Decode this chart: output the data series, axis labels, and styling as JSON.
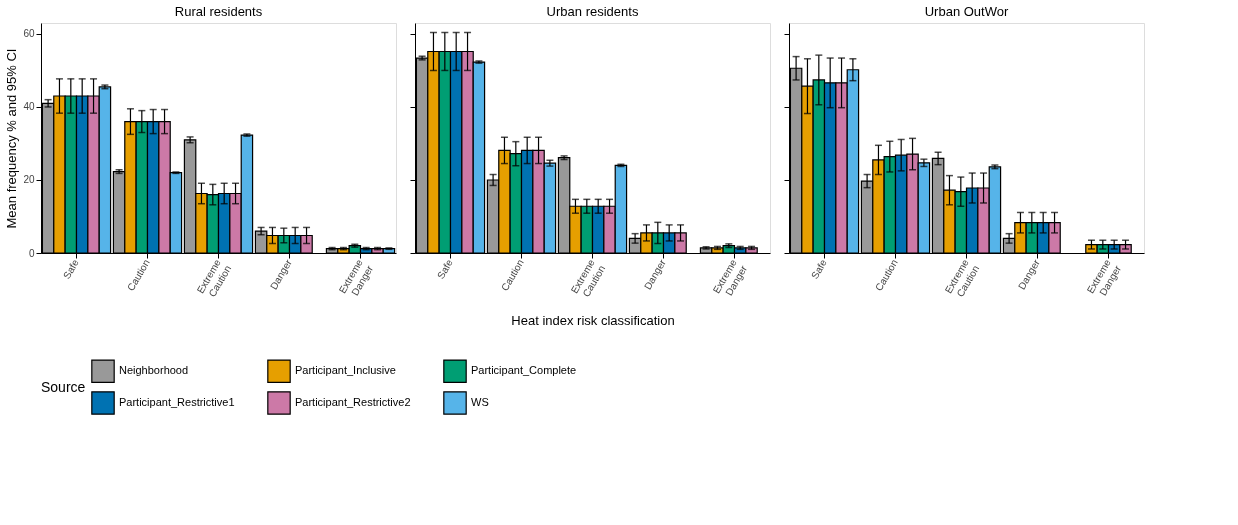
{
  "chart_data": [
    {
      "type": "bar",
      "title": "Rural residents",
      "ylabel": "Mean frequency % and 95% CI",
      "categories": [
        "Safe",
        "Caution",
        "Extreme Caution",
        "Danger",
        "Extreme Danger"
      ],
      "ylim": [
        0,
        63
      ],
      "yticks": [
        0,
        20,
        40,
        60
      ],
      "grid": false,
      "legend": "bottom",
      "legend_title": "Source",
      "series": [
        {
          "name": "Neighborhood",
          "color": "#999999",
          "values": [
            41,
            22.3,
            31,
            6,
            1.2
          ],
          "errors": [
            1,
            0.5,
            0.8,
            1,
            0.3
          ]
        },
        {
          "name": "Participant_Inclusive",
          "color": "#e69f00",
          "values": [
            43,
            36,
            16.3,
            4.8,
            1.2
          ],
          "errors": [
            4.7,
            3.5,
            2.8,
            2.2,
            0.3
          ]
        },
        {
          "name": "Participant_Complete",
          "color": "#009e73",
          "values": [
            43,
            36,
            16,
            4.8,
            2
          ],
          "errors": [
            4.7,
            3,
            2.8,
            2,
            0.4
          ]
        },
        {
          "name": "Participant_Restrictive1",
          "color": "#0072b2",
          "values": [
            43,
            36,
            16.3,
            4.8,
            1.2
          ],
          "errors": [
            4.7,
            3.3,
            2.8,
            2.2,
            0.3
          ]
        },
        {
          "name": "Participant_Restrictive2",
          "color": "#cc79a7",
          "values": [
            43,
            36,
            16.3,
            4.8,
            1.2
          ],
          "errors": [
            4.7,
            3.3,
            2.8,
            2.2,
            0.3
          ]
        },
        {
          "name": "WS",
          "color": "#56b4e9",
          "values": [
            45.5,
            22,
            32.3,
            null,
            1.2
          ],
          "errors": [
            0.5,
            0.2,
            0.3,
            null,
            0.2
          ]
        }
      ]
    },
    {
      "type": "bar",
      "title": "Urban residents",
      "xlabel": "Heat index risk classification",
      "categories": [
        "Safe",
        "Caution",
        "Extreme Caution",
        "Danger",
        "Extreme Danger"
      ],
      "ylim": [
        0,
        63
      ],
      "yticks": [
        0,
        20,
        40,
        60
      ],
      "grid": false,
      "tick_labels": "x",
      "series": [
        {
          "name": "Neighborhood",
          "color": "#999999",
          "values": [
            53.4,
            20,
            26.1,
            4,
            1.4
          ],
          "errors": [
            0.5,
            1.5,
            0.5,
            1.3,
            0.3
          ]
        },
        {
          "name": "Participant_Inclusive",
          "color": "#e69f00",
          "values": [
            55.2,
            28.1,
            12.8,
            5.5,
            1.4
          ],
          "errors": [
            5.2,
            3.6,
            1.9,
            2.2,
            0.4
          ]
        },
        {
          "name": "Participant_Complete",
          "color": "#009e73",
          "values": [
            55.2,
            27.2,
            12.8,
            5.5,
            2
          ],
          "errors": [
            5.2,
            3.3,
            1.9,
            2.9,
            0.5
          ]
        },
        {
          "name": "Participant_Restrictive1",
          "color": "#0072b2",
          "values": [
            55.2,
            28.1,
            12.8,
            5.5,
            1.4
          ],
          "errors": [
            5.2,
            3.6,
            1.9,
            2.2,
            0.4
          ]
        },
        {
          "name": "Participant_Restrictive2",
          "color": "#cc79a7",
          "values": [
            55.2,
            28.1,
            12.8,
            5.5,
            1.4
          ],
          "errors": [
            5.2,
            3.6,
            1.9,
            2.2,
            0.4
          ]
        },
        {
          "name": "WS",
          "color": "#56b4e9",
          "values": [
            52.3,
            24.6,
            24,
            null,
            null
          ],
          "errors": [
            0.3,
            0.8,
            0.3,
            null,
            null
          ]
        }
      ]
    },
    {
      "type": "bar",
      "title": "Urban OutWor",
      "categories": [
        "Safe",
        "Caution",
        "Extreme Caution",
        "Danger",
        "Extreme Danger"
      ],
      "ylim": [
        0,
        63
      ],
      "yticks": [
        0,
        20,
        40,
        60
      ],
      "grid": false,
      "tick_labels": "x",
      "series": [
        {
          "name": "Neighborhood",
          "color": "#999999",
          "values": [
            50.6,
            19.7,
            25.9,
            4,
            null
          ],
          "errors": [
            3.2,
            1.8,
            1.7,
            1.3,
            null
          ]
        },
        {
          "name": "Participant_Inclusive",
          "color": "#e69f00",
          "values": [
            45.7,
            25.5,
            17.2,
            8.3,
            2.3
          ],
          "errors": [
            7.5,
            4,
            4,
            2.8,
            1.2
          ]
        },
        {
          "name": "Participant_Complete",
          "color": "#009e73",
          "values": [
            47.4,
            26.4,
            16.8,
            8.3,
            2.3
          ],
          "errors": [
            6.8,
            4.2,
            4,
            2.8,
            1.2
          ]
        },
        {
          "name": "Participant_Restrictive1",
          "color": "#0072b2",
          "values": [
            46.6,
            26.8,
            17.8,
            8.3,
            2.3
          ],
          "errors": [
            6.8,
            4.3,
            4.1,
            2.8,
            1.2
          ]
        },
        {
          "name": "Participant_Restrictive2",
          "color": "#cc79a7",
          "values": [
            46.6,
            27.1,
            17.8,
            8.3,
            2.3
          ],
          "errors": [
            6.8,
            4.3,
            4.1,
            2.8,
            1.2
          ]
        },
        {
          "name": "WS",
          "color": "#56b4e9",
          "values": [
            50.2,
            24.7,
            23.6,
            null,
            null
          ],
          "errors": [
            3,
            1,
            0.5,
            null,
            null
          ]
        }
      ]
    }
  ]
}
